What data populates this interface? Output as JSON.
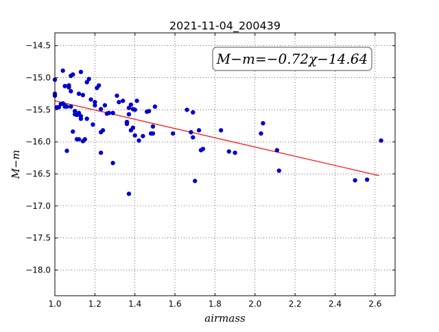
{
  "chart_data": {
    "type": "scatter",
    "title": "2021-11-04_200439",
    "xlabel": "airmass",
    "ylabel": "M−m",
    "xlim": [
      1.0,
      2.7
    ],
    "ylim": [
      -18.4,
      -14.3
    ],
    "y_inverted": true,
    "grid": true,
    "xticks": [
      "1.0",
      "1.2",
      "1.4",
      "1.6",
      "1.8",
      "2.0",
      "2.2",
      "2.4",
      "2.6"
    ],
    "yticks": [
      "−14.5",
      "−15.0",
      "−15.5",
      "−16.0",
      "−16.5",
      "−17.0",
      "−17.5",
      "−18.0"
    ],
    "annotation": "M−m=−0.72χ−14.64",
    "fit": {
      "slope": -0.72,
      "intercept": -14.64,
      "x_range": [
        1.0,
        2.62
      ],
      "color": "#ff0000"
    },
    "point_color": "#0000cc",
    "x": [
      1.0,
      1.0,
      1.0,
      1.01,
      1.02,
      1.03,
      1.04,
      1.04,
      1.05,
      1.05,
      1.05,
      1.06,
      1.06,
      1.07,
      1.07,
      1.07,
      1.08,
      1.08,
      1.08,
      1.09,
      1.09,
      1.1,
      1.1,
      1.11,
      1.11,
      1.12,
      1.12,
      1.12,
      1.13,
      1.13,
      1.13,
      1.14,
      1.14,
      1.15,
      1.16,
      1.16,
      1.17,
      1.18,
      1.19,
      1.2,
      1.2,
      1.21,
      1.22,
      1.23,
      1.23,
      1.23,
      1.24,
      1.25,
      1.26,
      1.27,
      1.29,
      1.29,
      1.31,
      1.32,
      1.34,
      1.36,
      1.36,
      1.37,
      1.37,
      1.37,
      1.38,
      1.38,
      1.39,
      1.39,
      1.4,
      1.4,
      1.41,
      1.42,
      1.44,
      1.46,
      1.47,
      1.48,
      1.49,
      1.49,
      1.5,
      1.59,
      1.66,
      1.68,
      1.69,
      1.69,
      1.7,
      1.72,
      1.73,
      1.74,
      1.83,
      1.87,
      1.9,
      2.03,
      2.04,
      2.11,
      2.12,
      2.5,
      2.56,
      2.63
    ],
    "y": [
      -15.03,
      -15.25,
      -15.28,
      -15.46,
      -15.46,
      -15.41,
      -15.4,
      -14.89,
      -15.13,
      -15.43,
      -15.45,
      -15.45,
      -16.14,
      -15.12,
      -15.12,
      -15.15,
      -14.97,
      -15.21,
      -15.45,
      -14.95,
      -15.84,
      -15.57,
      -15.52,
      -15.58,
      -15.96,
      -15.25,
      -15.55,
      -15.96,
      -15.6,
      -15.64,
      -14.91,
      -15.99,
      -15.27,
      -15.96,
      -15.07,
      -15.64,
      -15.02,
      -15.34,
      -15.73,
      -15.43,
      -15.38,
      -15.16,
      -15.12,
      -15.49,
      -15.85,
      -16.17,
      -15.82,
      -15.43,
      -15.56,
      -15.55,
      -16.33,
      -15.55,
      -15.28,
      -15.38,
      -15.36,
      -15.69,
      -15.72,
      -15.57,
      -16.81,
      -15.47,
      -15.42,
      -15.82,
      -15.78,
      -15.49,
      -15.9,
      -15.5,
      -15.36,
      -15.98,
      -15.91,
      -15.53,
      -15.52,
      -15.87,
      -15.76,
      -15.87,
      -15.45,
      -15.87,
      -15.5,
      -15.85,
      -15.54,
      -15.93,
      -16.61,
      -15.82,
      -16.13,
      -16.11,
      -15.82,
      -16.15,
      -16.17,
      -15.87,
      -15.71,
      -16.13,
      -16.45,
      -16.6,
      -16.59,
      -15.98
    ]
  }
}
